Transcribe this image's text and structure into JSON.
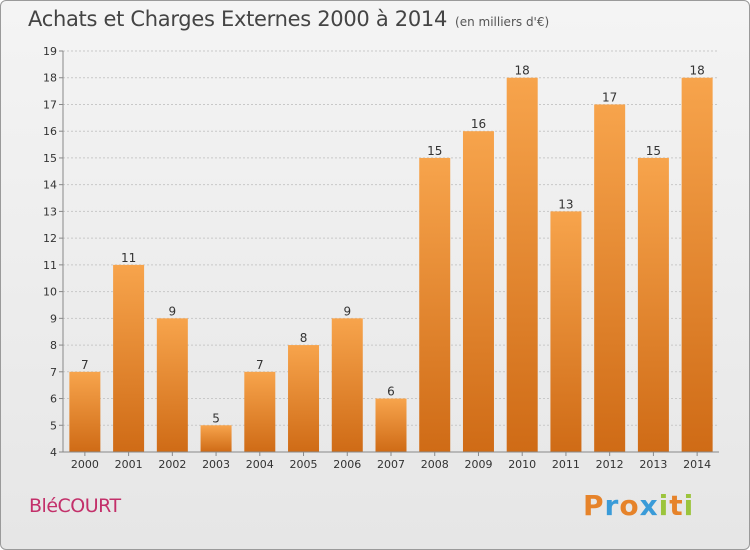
{
  "title": "Achats et Charges Externes 2000 à 2014",
  "unit": "(en milliers d'€)",
  "town": "BléCOURT",
  "logo": {
    "text": "Proxiti",
    "letters": [
      {
        "ch": "P",
        "color": "#e6832a"
      },
      {
        "ch": "r",
        "color": "#3a9bd8"
      },
      {
        "ch": "o",
        "color": "#e6832a"
      },
      {
        "ch": "x",
        "color": "#3a9bd8"
      },
      {
        "ch": "i",
        "color": "#9bc43c"
      },
      {
        "ch": "t",
        "color": "#e6832a"
      },
      {
        "ch": "i",
        "color": "#9bc43c"
      }
    ]
  },
  "colors": {
    "bar_top": "#f7a44c",
    "bar_bottom": "#cf6b16",
    "grid": "#c8c8c8",
    "axis": "#888888",
    "text": "#333333"
  },
  "chart_data": {
    "type": "bar",
    "categories": [
      "2000",
      "2001",
      "2002",
      "2003",
      "2004",
      "2005",
      "2006",
      "2007",
      "2008",
      "2009",
      "2010",
      "2011",
      "2012",
      "2013",
      "2014"
    ],
    "values": [
      7,
      11,
      9,
      5,
      7,
      8,
      9,
      6,
      15,
      16,
      18,
      13,
      17,
      15,
      18
    ],
    "data_labels": [
      "7",
      "11",
      "9",
      "5",
      "7",
      "8",
      "9",
      "6",
      "15",
      "16",
      "18",
      "13",
      "17",
      "15",
      "18"
    ],
    "yticks": [
      4,
      5,
      6,
      7,
      8,
      9,
      10,
      11,
      12,
      13,
      14,
      15,
      16,
      17,
      18,
      19
    ],
    "ylim": [
      4,
      19
    ],
    "grid": true,
    "legend": "none"
  }
}
